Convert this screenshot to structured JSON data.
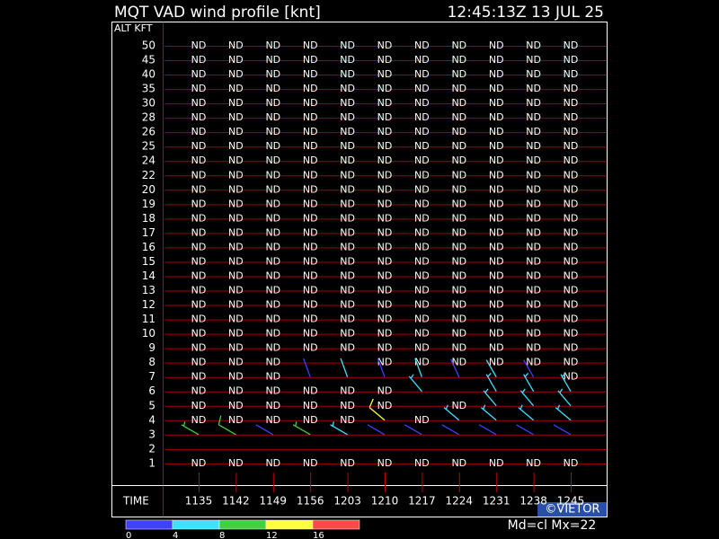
{
  "header": {
    "title": "MQT VAD wind profile [knt]",
    "timestamp": "12:45:13Z 13 JUL 25"
  },
  "altitude_label": "ALT KFT",
  "time_label": "TIME",
  "altitudes": [
    50,
    45,
    40,
    35,
    30,
    28,
    26,
    25,
    24,
    22,
    20,
    19,
    18,
    17,
    16,
    15,
    14,
    13,
    12,
    11,
    10,
    9,
    8,
    7,
    6,
    5,
    4,
    3,
    2,
    1
  ],
  "times": [
    "1135",
    "1142",
    "1149",
    "1156",
    "1203",
    "1210",
    "1217",
    "1224",
    "1231",
    "1238",
    "1245"
  ],
  "rows": [
    {
      "cells": [
        "ND",
        "ND",
        "ND",
        "ND",
        "ND",
        "ND",
        "ND",
        "ND",
        "ND",
        "ND",
        "ND"
      ]
    },
    {
      "cells": [
        "ND",
        "ND",
        "ND",
        "ND",
        "ND",
        "ND",
        "ND",
        "ND",
        "ND",
        "ND",
        "ND"
      ]
    },
    {
      "cells": [
        "ND",
        "ND",
        "ND",
        "ND",
        "ND",
        "ND",
        "ND",
        "ND",
        "ND",
        "ND",
        "ND"
      ]
    },
    {
      "cells": [
        "ND",
        "ND",
        "ND",
        "ND",
        "ND",
        "ND",
        "ND",
        "ND",
        "ND",
        "ND",
        "ND"
      ]
    },
    {
      "cells": [
        "ND",
        "ND",
        "ND",
        "ND",
        "ND",
        "ND",
        "ND",
        "ND",
        "ND",
        "ND",
        "ND"
      ]
    },
    {
      "cells": [
        "ND",
        "ND",
        "ND",
        "ND",
        "ND",
        "ND",
        "ND",
        "ND",
        "ND",
        "ND",
        "ND"
      ]
    },
    {
      "cells": [
        "ND",
        "ND",
        "ND",
        "ND",
        "ND",
        "ND",
        "ND",
        "ND",
        "ND",
        "ND",
        "ND"
      ]
    },
    {
      "cells": [
        "ND",
        "ND",
        "ND",
        "ND",
        "ND",
        "ND",
        "ND",
        "ND",
        "ND",
        "ND",
        "ND"
      ]
    },
    {
      "cells": [
        "ND",
        "ND",
        "ND",
        "ND",
        "ND",
        "ND",
        "ND",
        "ND",
        "ND",
        "ND",
        "ND"
      ]
    },
    {
      "cells": [
        "ND",
        "ND",
        "ND",
        "ND",
        "ND",
        "ND",
        "ND",
        "ND",
        "ND",
        "ND",
        "ND"
      ]
    },
    {
      "cells": [
        "ND",
        "ND",
        "ND",
        "ND",
        "ND",
        "ND",
        "ND",
        "ND",
        "ND",
        "ND",
        "ND"
      ]
    },
    {
      "cells": [
        "ND",
        "ND",
        "ND",
        "ND",
        "ND",
        "ND",
        "ND",
        "ND",
        "ND",
        "ND",
        "ND"
      ]
    },
    {
      "cells": [
        "ND",
        "ND",
        "ND",
        "ND",
        "ND",
        "ND",
        "ND",
        "ND",
        "ND",
        "ND",
        "ND"
      ]
    },
    {
      "cells": [
        "ND",
        "ND",
        "ND",
        "ND",
        "ND",
        "ND",
        "ND",
        "ND",
        "ND",
        "ND",
        "ND"
      ]
    },
    {
      "cells": [
        "ND",
        "ND",
        "ND",
        "ND",
        "ND",
        "ND",
        "ND",
        "ND",
        "ND",
        "ND",
        "ND"
      ]
    },
    {
      "cells": [
        "ND",
        "ND",
        "ND",
        "ND",
        "ND",
        "ND",
        "ND",
        "ND",
        "ND",
        "ND",
        "ND"
      ]
    },
    {
      "cells": [
        "ND",
        "ND",
        "ND",
        "ND",
        "ND",
        "ND",
        "ND",
        "ND",
        "ND",
        "ND",
        "ND"
      ]
    },
    {
      "cells": [
        "ND",
        "ND",
        "ND",
        "ND",
        "ND",
        "ND",
        "ND",
        "ND",
        "ND",
        "ND",
        "ND"
      ]
    },
    {
      "cells": [
        "ND",
        "ND",
        "ND",
        "ND",
        "ND",
        "ND",
        "ND",
        "ND",
        "ND",
        "ND",
        "ND"
      ]
    },
    {
      "cells": [
        "ND",
        "ND",
        "ND",
        "ND",
        "ND",
        "ND",
        "ND",
        "ND",
        "ND",
        "ND",
        "ND"
      ]
    },
    {
      "cells": [
        "ND",
        "ND",
        "ND",
        "ND",
        "ND",
        "ND",
        "ND",
        "ND",
        "ND",
        "ND",
        "ND"
      ]
    },
    {
      "cells": [
        "ND",
        "ND",
        "ND",
        "ND",
        "ND",
        "ND",
        "ND",
        "ND",
        "ND",
        "ND",
        "ND"
      ]
    },
    {
      "cells": [
        "ND",
        "ND",
        "ND",
        null,
        null,
        "ND",
        "ND",
        "ND",
        "ND",
        "ND",
        "ND"
      ]
    },
    {
      "cells": [
        "ND",
        "ND",
        "ND",
        {
          "dir": 340,
          "speed": 3
        },
        {
          "dir": 340,
          "speed": 4
        },
        {
          "dir": 340,
          "speed": 3
        },
        {
          "dir": 340,
          "speed": 4
        },
        {
          "dir": 335,
          "speed": 3
        },
        {
          "dir": 330,
          "speed": 4
        },
        {
          "dir": 330,
          "speed": 3
        },
        "ND"
      ]
    },
    {
      "cells": [
        "ND",
        "ND",
        "ND",
        "ND",
        "ND",
        "ND",
        {
          "dir": 320,
          "speed": 6
        },
        null,
        {
          "dir": 330,
          "speed": 5
        },
        {
          "dir": 330,
          "speed": 6
        },
        {
          "dir": 330,
          "speed": 5
        }
      ]
    },
    {
      "cells": [
        "ND",
        "ND",
        "ND",
        "ND",
        "ND",
        "ND",
        null,
        "ND",
        {
          "dir": 320,
          "speed": 6
        },
        {
          "dir": 320,
          "speed": 7
        },
        {
          "dir": 320,
          "speed": 6
        }
      ]
    },
    {
      "cells": [
        "ND",
        "ND",
        "ND",
        "ND",
        "ND",
        {
          "dir": 310,
          "speed": 13
        },
        "ND",
        {
          "dir": 310,
          "speed": 6
        },
        {
          "dir": 310,
          "speed": 7
        },
        {
          "dir": 310,
          "speed": 6
        },
        {
          "dir": 310,
          "speed": 5
        }
      ]
    },
    {
      "cells": [
        {
          "dir": 300,
          "speed": 9
        },
        {
          "dir": 300,
          "speed": 10
        },
        {
          "dir": 300,
          "speed": 3
        },
        {
          "dir": 300,
          "speed": 9
        },
        {
          "dir": 300,
          "speed": 6
        },
        {
          "dir": 300,
          "speed": 3
        },
        {
          "dir": 300,
          "speed": 3
        },
        {
          "dir": 300,
          "speed": 3
        },
        {
          "dir": 300,
          "speed": 3
        },
        {
          "dir": 300,
          "speed": 3
        },
        {
          "dir": 300,
          "speed": 3
        }
      ]
    },
    {
      "cells": [
        null,
        null,
        null,
        null,
        null,
        null,
        null,
        null,
        null,
        null,
        null
      ]
    },
    {
      "cells": [
        "ND",
        "ND",
        "ND",
        "ND",
        "ND",
        "ND",
        "ND",
        "ND",
        "ND",
        "ND",
        "ND"
      ]
    }
  ],
  "legend": {
    "ticks": [
      0,
      4,
      8,
      12,
      16
    ],
    "colors": [
      "#4040ff",
      "#40e0ff",
      "#40d040",
      "#ffff40",
      "#ff4848"
    ]
  },
  "footer": {
    "status": "Md=cl Mx=22",
    "credit": "©VIETOR"
  }
}
